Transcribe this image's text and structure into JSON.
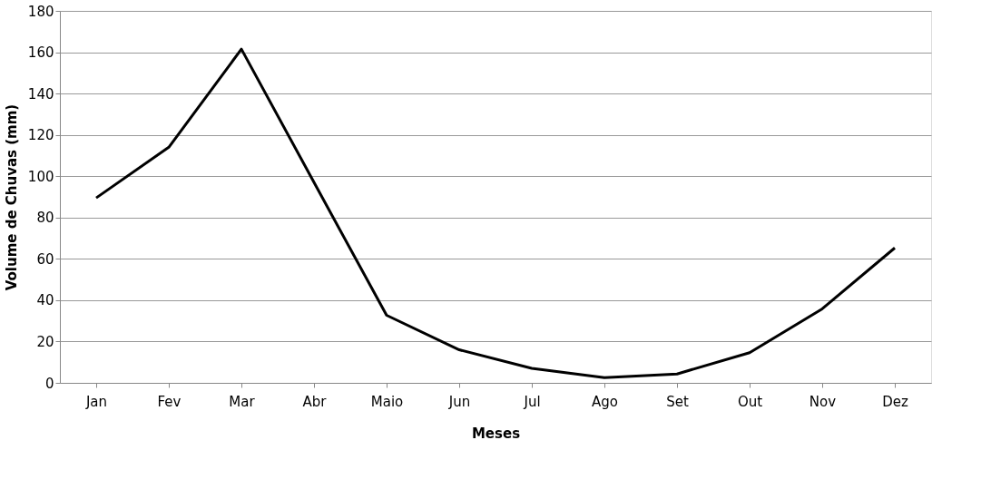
{
  "chart_data": {
    "type": "line",
    "xlabel": "Meses",
    "ylabel": "Volume de Chuvas (mm)",
    "categories": [
      "Jan",
      "Fev",
      "Mar",
      "Abr",
      "Maio",
      "Jun",
      "Jul",
      "Ago",
      "Set",
      "Out",
      "Nov",
      "Dez"
    ],
    "series": [
      {
        "color": "#000000",
        "values": [
          89.5,
          114,
          161.5,
          97,
          32.7,
          16,
          7,
          2.5,
          4.3,
          14.6,
          35.8,
          65.3
        ]
      }
    ],
    "ylim": [
      0,
      180
    ],
    "yticks": [
      0,
      20,
      40,
      60,
      80,
      100,
      120,
      140,
      160,
      180
    ],
    "grid": "y",
    "legend": false,
    "marker": "none",
    "line_style": "solid"
  }
}
